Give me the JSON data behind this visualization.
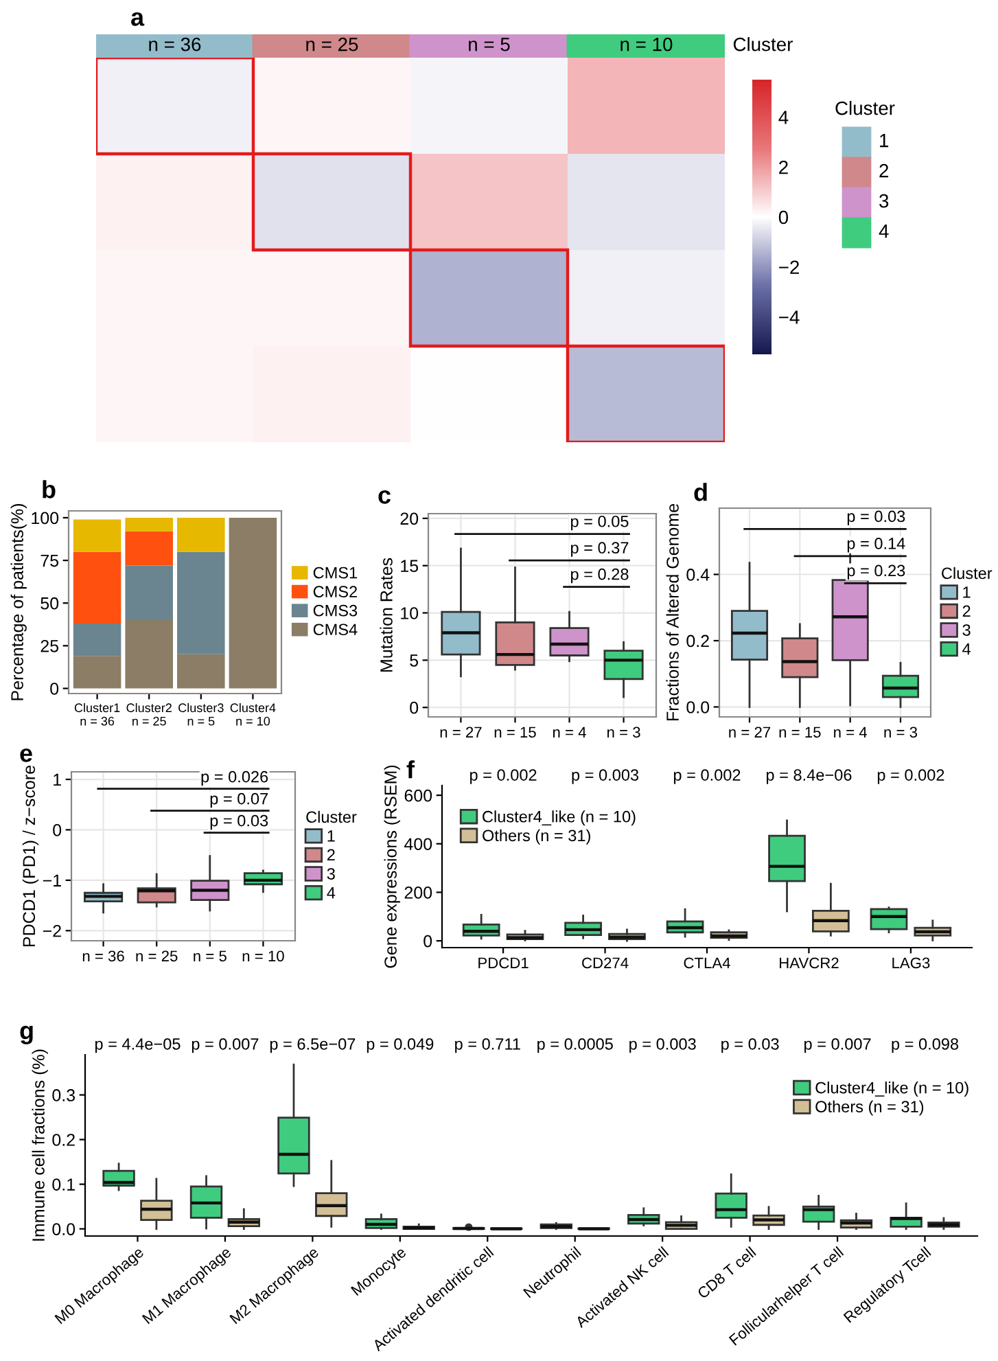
{
  "chart_data": [
    {
      "type": "heatmap",
      "title": "a",
      "categories": [
        null,
        null,
        null,
        null
      ],
      "colors": [
        "#93bccb",
        "#d0888b",
        "#cf93cc",
        "#3fcc7f"
      ],
      "y_categories": [
        null,
        null,
        null,
        null
      ],
      "cells": [
        [
          -0.3,
          0.2,
          -0.2,
          1.5
        ],
        [
          0.3,
          -0.6,
          1.2,
          -0.5
        ],
        [
          0.2,
          0.2,
          -1.5,
          -0.3
        ],
        [
          0.2,
          0.3,
          0.0,
          -1.3
        ]
      ],
      "clim": [
        -5.5,
        5.5
      ],
      "cticks": [
        {
          "value": -4,
          "label": "−4"
        },
        {
          "value": -2,
          "label": "−2"
        },
        0,
        2,
        4
      ],
      "tick_labels": false,
      "annotations": [
        "n = 36",
        "n = 25",
        "n = 5",
        "n = 10",
        "Cluster",
        "Cluster",
        "1",
        "2",
        "3",
        "4"
      ]
    },
    {
      "type": "bar",
      "title": "b",
      "stacked": true,
      "categories": [
        "Cluster1\nn = 36",
        "Cluster2\nn = 25",
        "Cluster3\nn = 5",
        "Cluster4\nn = 10"
      ],
      "series": [
        {
          "name": "CMS4",
          "color": "#8b7d66",
          "values": [
            19,
            40,
            20,
            100
          ]
        },
        {
          "name": "CMS3",
          "color": "#6a8590",
          "values": [
            19,
            32,
            60,
            0
          ]
        },
        {
          "name": "CMS2",
          "color": "#ff5010",
          "values": [
            42,
            20,
            0,
            0
          ]
        },
        {
          "name": "CMS1",
          "color": "#e6b800",
          "values": [
            19,
            8,
            20,
            0
          ]
        }
      ],
      "ylabel": "Percentage of patients(%)",
      "ylim": [
        -3,
        104
      ],
      "yticks": [
        0,
        25,
        50,
        75,
        100
      ],
      "legend": "right",
      "grid": false
    },
    {
      "type": "box",
      "title": "c",
      "categories": [
        "n = 27",
        "n = 15",
        "n = 4",
        "n = 3"
      ],
      "ylabel": "Mutation Rates",
      "ylim": [
        -1,
        20.5
      ],
      "yticks": [
        0,
        5,
        10,
        15,
        20
      ],
      "grid": true,
      "legend": false,
      "series": [
        {
          "color": "#93bccb",
          "boxes": [
            {
              "low": 3.3,
              "q1": 5.6,
              "median": 7.9,
              "q3": 10.1,
              "high": 16.8
            },
            null,
            null,
            null
          ]
        },
        {
          "color": "#d0888b",
          "boxes": [
            null,
            {
              "low": 4,
              "q1": 4.5,
              "median": 5.6,
              "q3": 9,
              "high": 14.8
            },
            null,
            null
          ]
        },
        {
          "color": "#cf93cc",
          "boxes": [
            null,
            null,
            {
              "low": 4.9,
              "q1": 5.5,
              "median": 6.7,
              "q3": 8.4,
              "high": 10.1
            },
            null
          ]
        },
        {
          "color": "#3fcc7f",
          "boxes": [
            null,
            null,
            null,
            {
              "low": 1.1,
              "q1": 3,
              "median": 5,
              "q3": 6,
              "high": 6.9
            }
          ]
        }
      ],
      "annotations": [
        "p = 0.05",
        "p = 0.37",
        "p = 0.28"
      ]
    },
    {
      "type": "box",
      "title": "d",
      "categories": [
        "n = 27",
        "n = 15",
        "n = 4",
        "n = 3"
      ],
      "ylabel": "Fractions of Altered Genome",
      "ylim": [
        -0.03,
        0.6
      ],
      "yticks": [
        {
          "value": 0,
          "label": "0.0"
        },
        0.2,
        0.4
      ],
      "grid": true,
      "legend": "right",
      "legend_title": "Cluster",
      "series": [
        {
          "name": "1",
          "color": "#93bccb",
          "boxes": [
            {
              "low": 0.0,
              "q1": 0.143,
              "median": 0.223,
              "q3": 0.29,
              "high": 0.435
            },
            null,
            null,
            null
          ]
        },
        {
          "name": "2",
          "color": "#d0888b",
          "boxes": [
            null,
            {
              "low": 0.0,
              "q1": 0.09,
              "median": 0.137,
              "q3": 0.207,
              "high": 0.25
            },
            null,
            null
          ]
        },
        {
          "name": "3",
          "color": "#cf93cc",
          "boxes": [
            null,
            null,
            {
              "low": 0.005,
              "q1": 0.141,
              "median": 0.272,
              "q3": 0.383,
              "high": 0.463
            },
            null
          ]
        },
        {
          "name": "4",
          "color": "#3fcc7f",
          "boxes": [
            null,
            null,
            null,
            {
              "low": 0.0,
              "q1": 0.03,
              "median": 0.057,
              "q3": 0.094,
              "high": 0.133
            }
          ]
        }
      ],
      "annotations": [
        "p = 0.03",
        "p = 0.14",
        "p = 0.23"
      ]
    },
    {
      "type": "box",
      "title": "e",
      "categories": [
        "n = 36",
        "n = 25",
        "n = 5",
        "n = 10"
      ],
      "ylabel": "PDCD1 (PD1) / z−score",
      "ylim": [
        -2.2,
        1.15
      ],
      "yticks": [
        {
          "value": -2,
          "label": "−2"
        },
        {
          "value": -1,
          "label": "−1"
        },
        0,
        1
      ],
      "grid": true,
      "legend": "right",
      "legend_title": "Cluster",
      "series": [
        {
          "name": "1",
          "color": "#93bccb",
          "boxes": [
            {
              "low": -1.64,
              "q1": -1.42,
              "median": -1.32,
              "q3": -1.25,
              "high": -1.08
            },
            null,
            null,
            null
          ]
        },
        {
          "name": "2",
          "color": "#d0888b",
          "boxes": [
            null,
            {
              "low": -1.52,
              "q1": -1.44,
              "median": -1.21,
              "q3": -1.16,
              "high": -0.88
            },
            null,
            null
          ]
        },
        {
          "name": "3",
          "color": "#cf93cc",
          "boxes": [
            null,
            null,
            {
              "low": -1.6,
              "q1": -1.39,
              "median": -1.2,
              "q3": -1.01,
              "high": -0.52
            },
            null
          ]
        },
        {
          "name": "4",
          "color": "#3fcc7f",
          "boxes": [
            null,
            null,
            null,
            {
              "low": -1.23,
              "q1": -1.08,
              "median": -1.0,
              "q3": -0.86,
              "high": -0.81
            }
          ]
        }
      ],
      "annotations": [
        "p = 0.026",
        "p = 0.07",
        "p = 0.03"
      ]
    },
    {
      "type": "box",
      "title": "f",
      "categories": [
        "PDCD1",
        "CD274",
        "CTLA4",
        "HAVCR2",
        "LAG3"
      ],
      "ylabel": "Gene expressions (RSEM)",
      "ylim": [
        -28,
        640
      ],
      "yticks": [
        0,
        200,
        400,
        600
      ],
      "grid": false,
      "legend": "top left",
      "series": [
        {
          "name": "Cluster4_like (n = 10)",
          "color": "#3fcc7f",
          "boxes": [
            {
              "low": 9,
              "q1": 22,
              "median": 39,
              "q3": 67,
              "high": 107
            },
            {
              "low": 11,
              "q1": 24,
              "median": 46,
              "q3": 74,
              "high": 104
            },
            {
              "low": 17,
              "q1": 35,
              "median": 54,
              "q3": 80,
              "high": 130
            },
            {
              "low": 122,
              "q1": 246,
              "median": 307,
              "q3": 433,
              "high": 496
            },
            {
              "low": 35,
              "q1": 48,
              "median": 100,
              "q3": 131,
              "high": 137
            }
          ]
        },
        {
          "name": "Others (n = 31)",
          "color": "#d2bf96",
          "boxes": [
            {
              "low": 2,
              "q1": 7,
              "median": 13,
              "q3": 26,
              "high": 41
            },
            {
              "low": 0,
              "q1": 7,
              "median": 15,
              "q3": 28,
              "high": 46
            },
            {
              "low": 4,
              "q1": 13,
              "median": 20,
              "q3": 35,
              "high": 43
            },
            {
              "low": 22,
              "q1": 39,
              "median": 83,
              "q3": 124,
              "high": 235
            },
            {
              "low": 2,
              "q1": 22,
              "median": 37,
              "q3": 54,
              "high": 83
            }
          ]
        }
      ],
      "annotations": [
        "p = 0.002",
        "p = 0.003",
        "p = 0.002",
        "p = 8.4e−06",
        "p = 0.002"
      ]
    },
    {
      "type": "box",
      "title": "g",
      "categories": [
        "M0 Macrophage",
        "M1 Macrophage",
        "M2 Macrophage",
        "Monocyte",
        "Activated dendritic cell",
        "Neutrophil",
        "Activated NK cell",
        "CD8 T cell",
        "Follicularhelper T cell",
        "Regulatory Tcell"
      ],
      "ylabel": "Immune cell fractions (%)",
      "ylim": [
        -0.016,
        0.39
      ],
      "yticks": [
        {
          "value": 0,
          "label": "0.0"
        },
        0.1,
        0.2,
        0.3
      ],
      "grid": false,
      "legend": "top right",
      "series": [
        {
          "name": "Cluster4_like (n = 10)",
          "color": "#3fcc7f",
          "boxes": [
            {
              "low": 0.087,
              "q1": 0.097,
              "median": 0.104,
              "q3": 0.13,
              "high": 0.146
            },
            {
              "low": 0.001,
              "q1": 0.025,
              "median": 0.058,
              "q3": 0.095,
              "high": 0.118
            },
            {
              "low": 0.096,
              "q1": 0.124,
              "median": 0.167,
              "q3": 0.249,
              "high": 0.368
            },
            {
              "low": 0.0,
              "q1": 0.002,
              "median": 0.01,
              "q3": 0.022,
              "high": 0.032
            },
            {
              "low": 0.0,
              "q1": 0.0,
              "median": 0.001,
              "q3": 0.002,
              "high": 0.002,
              "outliers": [
                0.004
              ]
            },
            {
              "low": 0.0,
              "q1": 0.002,
              "median": 0.005,
              "q3": 0.01,
              "high": 0.013
            },
            {
              "low": 0.008,
              "q1": 0.012,
              "median": 0.021,
              "q3": 0.031,
              "high": 0.046
            },
            {
              "low": 0.005,
              "q1": 0.025,
              "median": 0.043,
              "q3": 0.079,
              "high": 0.122
            },
            {
              "low": 0.0,
              "q1": 0.016,
              "median": 0.043,
              "q3": 0.05,
              "high": 0.074
            },
            {
              "low": 0.0,
              "q1": 0.005,
              "median": 0.023,
              "q3": 0.025,
              "high": 0.057
            }
          ]
        },
        {
          "name": "Others (n = 31)",
          "color": "#d2bf96",
          "boxes": [
            {
              "low": 0.0,
              "q1": 0.02,
              "median": 0.044,
              "q3": 0.063,
              "high": 0.112
            },
            {
              "low": 0.0,
              "q1": 0.006,
              "median": 0.015,
              "q3": 0.022,
              "high": 0.044
            },
            {
              "low": 0.005,
              "q1": 0.029,
              "median": 0.052,
              "q3": 0.08,
              "high": 0.152
            },
            {
              "low": 0.0,
              "q1": 0.0,
              "median": 0.002,
              "q3": 0.005,
              "high": 0.01
            },
            {
              "low": 0.0,
              "q1": 0.0,
              "median": 0.0,
              "q3": 0.001,
              "high": 0.001
            },
            {
              "low": 0.0,
              "q1": 0.0,
              "median": 0.0,
              "q3": 0.001,
              "high": 0.001
            },
            {
              "low": 0.0,
              "q1": 0.0,
              "median": 0.008,
              "q3": 0.015,
              "high": 0.028
            },
            {
              "low": 0.0,
              "q1": 0.009,
              "median": 0.02,
              "q3": 0.03,
              "high": 0.049
            },
            {
              "low": 0.0,
              "q1": 0.003,
              "median": 0.013,
              "q3": 0.019,
              "high": 0.034
            },
            {
              "low": 0.0,
              "q1": 0.005,
              "median": 0.009,
              "q3": 0.014,
              "high": 0.024
            }
          ]
        }
      ],
      "annotations": [
        "p = 4.4e−05",
        "p = 0.007",
        "p = 6.5e−07",
        "p = 0.049",
        "p = 0.711",
        "p = 0.0005",
        "p = 0.003",
        "p = 0.03",
        "p = 0.007",
        "p = 0.098"
      ]
    }
  ]
}
